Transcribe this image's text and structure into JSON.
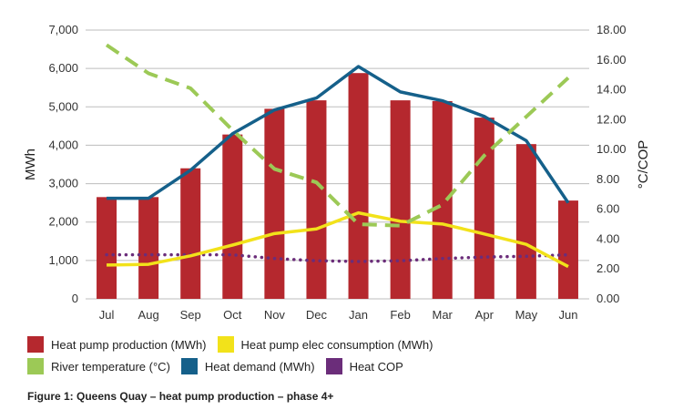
{
  "chart_data": {
    "type": "bar",
    "categories": [
      "Jul",
      "Aug",
      "Sep",
      "Oct",
      "Nov",
      "Dec",
      "Jan",
      "Feb",
      "Mar",
      "Apr",
      "May",
      "Jun"
    ],
    "ylabel": "MWh",
    "y2label": "°C/COP",
    "ylim": [
      0,
      7000
    ],
    "y2lim": [
      0,
      18
    ],
    "yticks": [
      "0",
      "1,000",
      "2,000",
      "3,000",
      "4,000",
      "5,000",
      "6,000",
      "7,000"
    ],
    "y2ticks": [
      "0.00",
      "2.00",
      "4.00",
      "6.00",
      "8.00",
      "10.00",
      "12.00",
      "14.00",
      "16.00",
      "18.00"
    ],
    "series": [
      {
        "name": "Heat pump production (MWh)",
        "kind": "bar",
        "axis": "left",
        "color": "#b5282e",
        "values": [
          2650,
          2650,
          3400,
          4280,
          4950,
          5170,
          5880,
          5170,
          5150,
          4720,
          4030,
          2560
        ]
      },
      {
        "name": "Heat pump elec consumption (MWh)",
        "kind": "line",
        "axis": "left",
        "color": "#f2e21a",
        "values": [
          880,
          900,
          1120,
          1400,
          1700,
          1820,
          2240,
          2020,
          1950,
          1690,
          1420,
          840
        ]
      },
      {
        "name": "River temperature (°C)",
        "kind": "dashed",
        "axis": "right",
        "color": "#9cc956",
        "values": [
          17.0,
          15.1,
          14.1,
          11.3,
          8.7,
          7.8,
          5.0,
          4.9,
          6.3,
          9.6,
          12.2,
          14.8
        ]
      },
      {
        "name": "Heat demand (MWh)",
        "kind": "line",
        "axis": "left",
        "color": "#15608a",
        "values": [
          2620,
          2620,
          3350,
          4300,
          4920,
          5230,
          6050,
          5390,
          5160,
          4750,
          4120,
          2500
        ]
      },
      {
        "name": "Heat COP",
        "kind": "dotted",
        "axis": "right",
        "color": "#6b2d7a",
        "values": [
          2.95,
          2.95,
          2.95,
          2.95,
          2.7,
          2.55,
          2.5,
          2.55,
          2.7,
          2.8,
          2.85,
          2.95
        ]
      }
    ],
    "legend_rows": [
      [
        0,
        1
      ],
      [
        2,
        3,
        4
      ]
    ],
    "legend_position": "bottom"
  },
  "caption": "Figure 1:  Queens Quay – heat pump production – phase 4+"
}
